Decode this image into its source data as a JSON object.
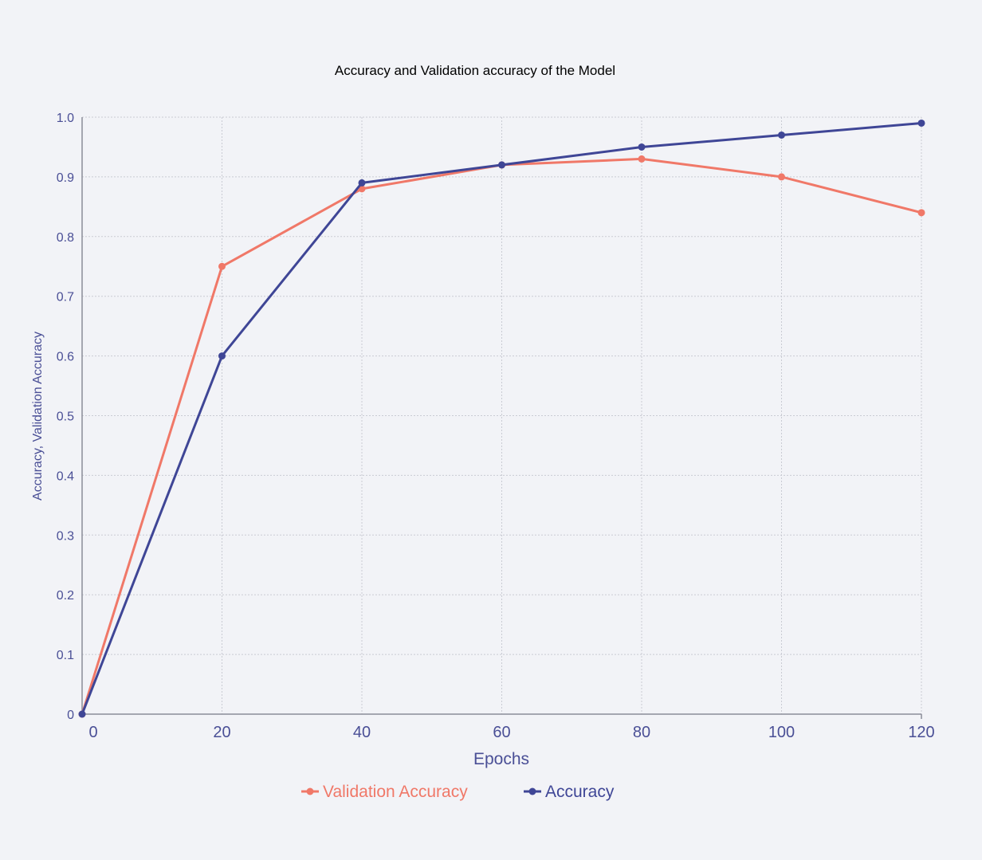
{
  "chart_data": {
    "type": "line",
    "title": "Accuracy and Validation accuracy of the Model",
    "xlabel": "Epochs",
    "ylabel": "Accuracy, Validation Accuracy",
    "x": [
      0,
      20,
      40,
      60,
      80,
      100,
      120
    ],
    "xlim": [
      0,
      120
    ],
    "ylim": [
      0,
      1.0
    ],
    "x_ticks": [
      0,
      20,
      40,
      60,
      80,
      100,
      120
    ],
    "y_ticks": [
      0,
      0.1,
      0.2,
      0.3,
      0.4,
      0.5,
      0.6,
      0.7,
      0.8,
      0.9,
      1.0
    ],
    "x_tick_labels": [
      "0",
      "20",
      "40",
      "60",
      "80",
      "100",
      "120"
    ],
    "y_tick_labels": [
      "0",
      "0.1",
      "0.2",
      "0.3",
      "0.4",
      "0.5",
      "0.6",
      "0.7",
      "0.8",
      "0.9",
      "1.0"
    ],
    "grid": true,
    "legend_position": "bottom-center",
    "series": [
      {
        "name": "Validation Accuracy",
        "color": "#f07868",
        "values": [
          0,
          0.75,
          0.88,
          0.92,
          0.93,
          0.9,
          0.84
        ]
      },
      {
        "name": "Accuracy",
        "color": "#3f4696",
        "values": [
          0,
          0.6,
          0.89,
          0.92,
          0.95,
          0.97,
          0.99
        ]
      }
    ]
  }
}
